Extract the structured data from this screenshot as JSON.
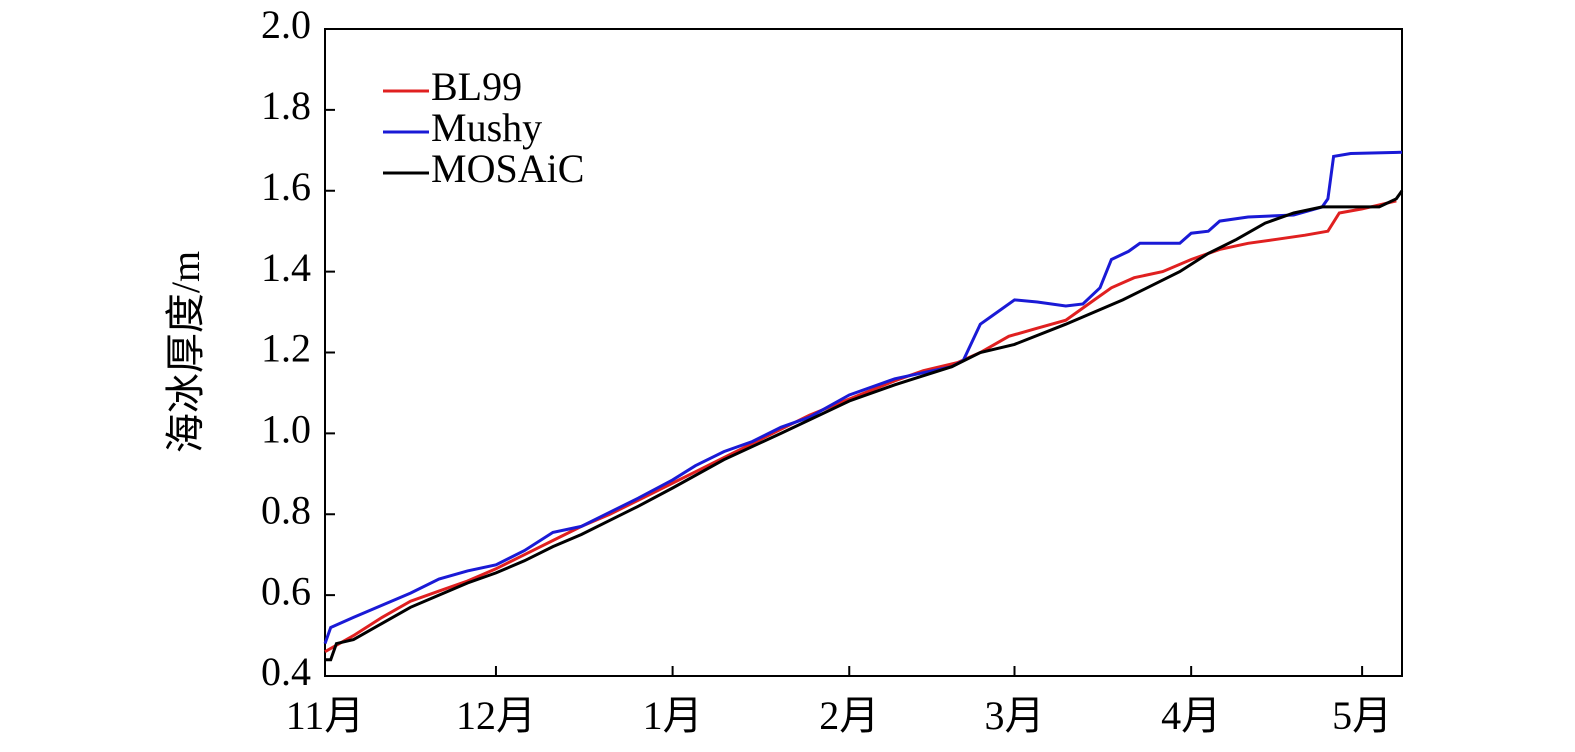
{
  "chart_data": {
    "type": "line",
    "y_label": "海冰厚度/m",
    "xlim": [
      0,
      189
    ],
    "xticks": [
      {
        "value": 0,
        "label": "11月"
      },
      {
        "value": 30,
        "label": "12月"
      },
      {
        "value": 61,
        "label": "1月"
      },
      {
        "value": 92,
        "label": "2月"
      },
      {
        "value": 121,
        "label": "3月"
      },
      {
        "value": 152,
        "label": "4月"
      },
      {
        "value": 182,
        "label": "5月"
      }
    ],
    "ylim": [
      0.4,
      2.0
    ],
    "yticks": [
      0.4,
      0.6,
      0.8,
      {
        "value": 1.0,
        "label": "1.0"
      },
      1.2,
      1.4,
      1.6,
      1.8,
      {
        "value": 2.0,
        "label": "2.0"
      }
    ],
    "legend": "upper left",
    "series": [
      {
        "name": "BL99",
        "color": "#e02020",
        "x": [
          0,
          5,
          10,
          15,
          20,
          25,
          30,
          35,
          40,
          45,
          50,
          55,
          61,
          65,
          70,
          75,
          80,
          85,
          92,
          100,
          105,
          111,
          115,
          120,
          125,
          130,
          135,
          138,
          142,
          147,
          152,
          157,
          162,
          167,
          172,
          176,
          178,
          182,
          188
        ],
        "values": [
          0.46,
          0.5,
          0.545,
          0.585,
          0.61,
          0.635,
          0.665,
          0.7,
          0.735,
          0.77,
          0.8,
          0.835,
          0.877,
          0.905,
          0.94,
          0.975,
          1.01,
          1.045,
          1.085,
          1.13,
          1.155,
          1.175,
          1.2,
          1.24,
          1.26,
          1.28,
          1.33,
          1.36,
          1.385,
          1.4,
          1.43,
          1.455,
          1.47,
          1.48,
          1.49,
          1.5,
          1.545,
          1.555,
          1.575
        ]
      },
      {
        "name": "Mushy",
        "color": "#1a1ad6",
        "x": [
          0,
          1,
          5,
          10,
          15,
          20,
          25,
          30,
          35,
          40,
          45,
          50,
          55,
          61,
          65,
          70,
          75,
          80,
          85,
          92,
          100,
          105,
          110,
          112,
          115,
          117,
          121,
          125,
          130,
          133,
          136,
          138,
          141,
          143,
          150,
          152,
          155,
          157,
          162,
          170,
          175,
          176,
          177,
          180,
          189
        ],
        "values": [
          0.48,
          0.52,
          0.545,
          0.575,
          0.605,
          0.64,
          0.66,
          0.675,
          0.71,
          0.755,
          0.77,
          0.805,
          0.84,
          0.885,
          0.92,
          0.955,
          0.98,
          1.015,
          1.04,
          1.095,
          1.135,
          1.15,
          1.165,
          1.18,
          1.27,
          1.29,
          1.33,
          1.325,
          1.315,
          1.32,
          1.36,
          1.43,
          1.45,
          1.47,
          1.47,
          1.495,
          1.5,
          1.525,
          1.535,
          1.54,
          1.56,
          1.58,
          1.685,
          1.692,
          1.695
        ]
      },
      {
        "name": "MOSAiC",
        "color": "#000000",
        "x": [
          0,
          1,
          2,
          5,
          10,
          15,
          20,
          25,
          30,
          35,
          40,
          45,
          50,
          55,
          61,
          70,
          80,
          92,
          100,
          110,
          115,
          121,
          130,
          140,
          150,
          155,
          160,
          165,
          170,
          175,
          185,
          188,
          189
        ],
        "values": [
          0.44,
          0.44,
          0.48,
          0.49,
          0.53,
          0.57,
          0.6,
          0.63,
          0.655,
          0.685,
          0.72,
          0.75,
          0.785,
          0.82,
          0.865,
          0.935,
          1.0,
          1.08,
          1.12,
          1.165,
          1.2,
          1.22,
          1.27,
          1.33,
          1.4,
          1.445,
          1.48,
          1.52,
          1.545,
          1.56,
          1.56,
          1.58,
          1.6
        ]
      }
    ]
  }
}
